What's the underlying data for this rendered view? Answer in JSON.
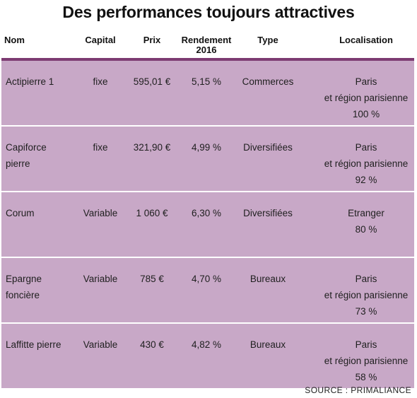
{
  "title": "Des performances toujours attractives",
  "headers": {
    "nom": "Nom",
    "capital": "Capital",
    "prix": "Prix",
    "rendement_l1": "Rendement",
    "rendement_l2": "2016",
    "type": "Type",
    "localisation": "Localisation"
  },
  "rows": [
    {
      "nom_l1": "Actipierre 1",
      "nom_l2": "",
      "capital": "fixe",
      "prix": "595,01 €",
      "rendement": "5,15 %",
      "type": "Commerces",
      "loc_l1": "Paris",
      "loc_l2": "et région parisienne",
      "loc_l3": "100 %"
    },
    {
      "nom_l1": "Capiforce",
      "nom_l2": "pierre",
      "capital": "fixe",
      "prix": "321,90 €",
      "rendement": "4,99 %",
      "type": "Diversifiées",
      "loc_l1": "Paris",
      "loc_l2": "et région parisienne",
      "loc_l3": "92 %"
    },
    {
      "nom_l1": "Corum",
      "nom_l2": "",
      "capital": "Variable",
      "prix": "1 060 €",
      "rendement": "6,30 %",
      "type": "Diversifiées",
      "loc_l1": "Etranger",
      "loc_l2": "80 %",
      "loc_l3": ""
    },
    {
      "nom_l1": "Epargne",
      "nom_l2": "foncière",
      "capital": "Variable",
      "prix": "785 €",
      "rendement": "4,70 %",
      "type": "Bureaux",
      "loc_l1": "Paris",
      "loc_l2": "et région parisienne",
      "loc_l3": "73 %"
    },
    {
      "nom_l1": "Laffitte pierre",
      "nom_l2": "",
      "capital": "Variable",
      "prix": "430 €",
      "rendement": "4,82 %",
      "type": "Bureaux",
      "loc_l1": "Paris",
      "loc_l2": "et région parisienne",
      "loc_l3": "58 %"
    }
  ],
  "source": "SOURCE : PRIMALIANCE",
  "colors": {
    "row_bg": "#c8a8c7",
    "divider": "#7d3b72"
  }
}
